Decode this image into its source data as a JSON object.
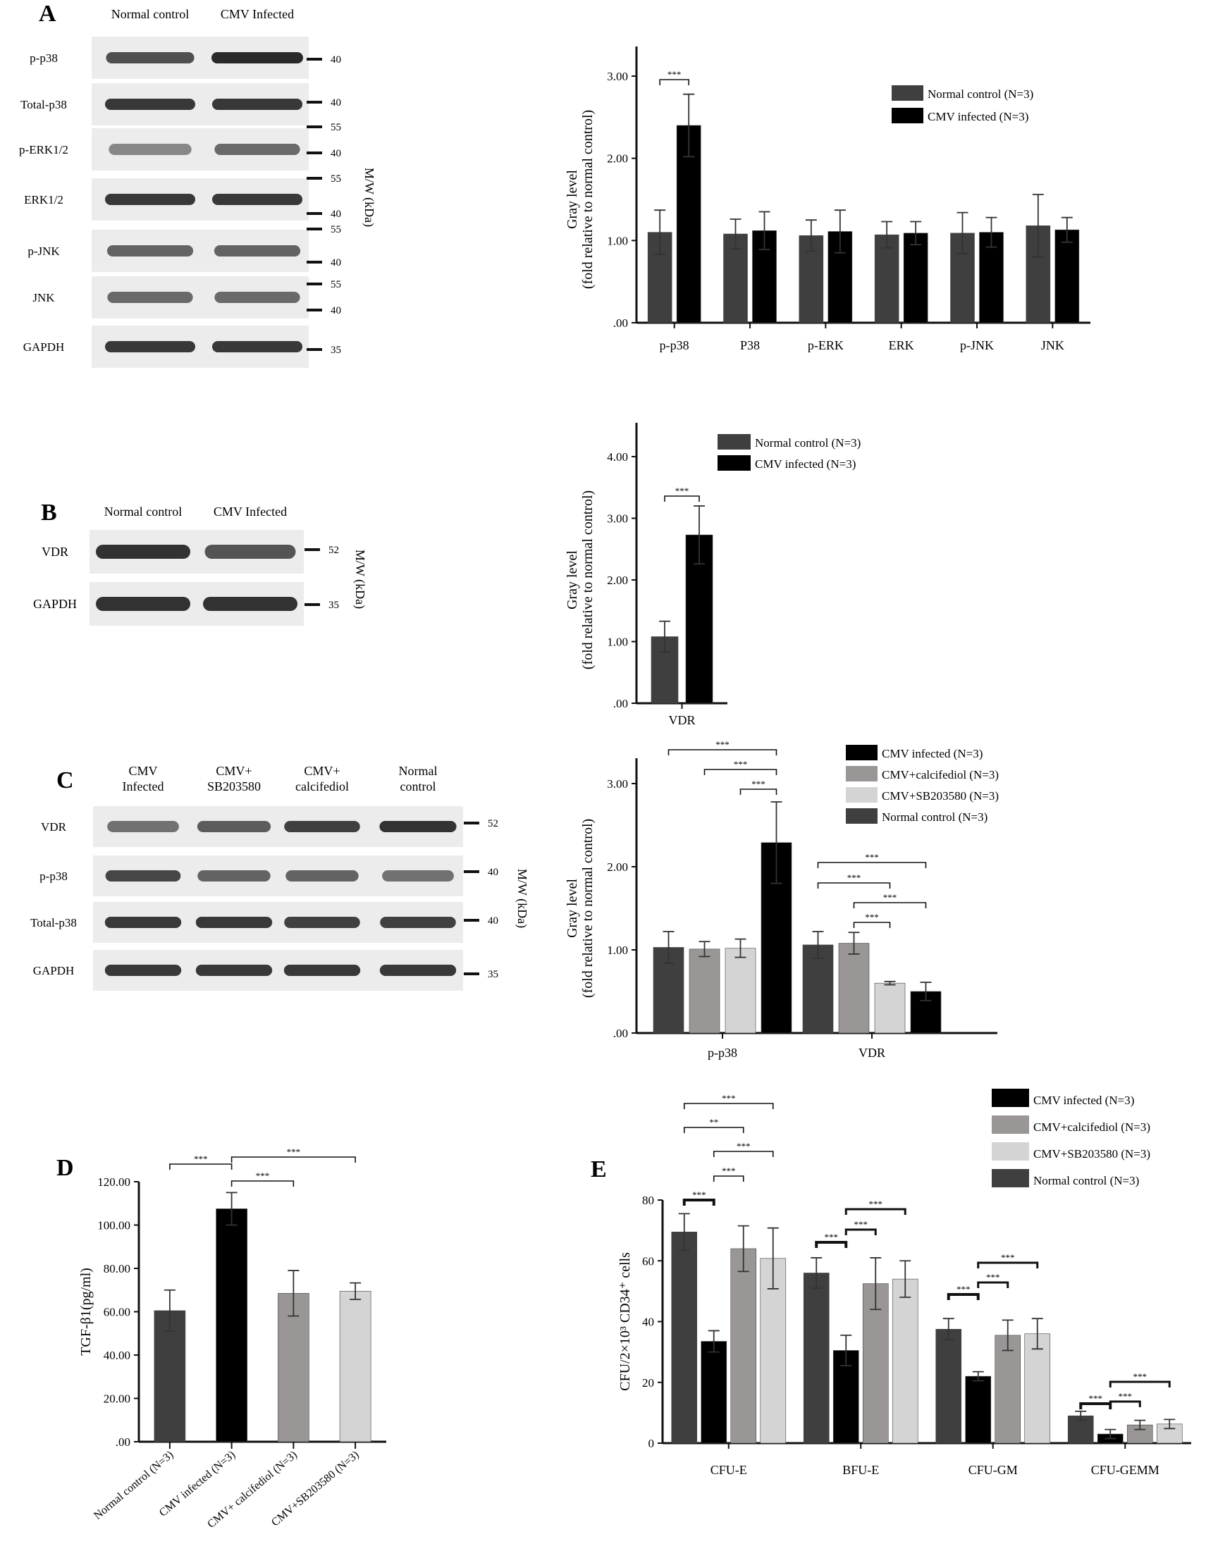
{
  "colors": {
    "normal": "#3f3f3f",
    "cmv": "#000000",
    "calcifediol": "#9a9696",
    "sb203580": "#d4d4d4",
    "blot_bg": "#ececec",
    "band": "#1f1f1f"
  },
  "panels": {
    "A": {
      "letter": "A",
      "blot": {
        "lanes": [
          "Normal control",
          "CMV Infected"
        ],
        "rows": [
          {
            "label": "p-p38",
            "markers": [
              "40"
            ],
            "intensity": [
              0.75,
              1.0
            ]
          },
          {
            "label": "Total-p38",
            "markers": [
              "40"
            ],
            "intensity": [
              0.9,
              0.9
            ]
          },
          {
            "label": "p-ERK1/2",
            "markers": [
              "55",
              "40"
            ],
            "intensity": [
              0.35,
              0.55
            ]
          },
          {
            "label": "ERK1/2",
            "markers": [
              "55",
              "40"
            ],
            "intensity": [
              0.9,
              0.9
            ]
          },
          {
            "label": "p-JNK",
            "markers": [
              "55",
              "40"
            ],
            "intensity": [
              0.6,
              0.6
            ]
          },
          {
            "label": "JNK",
            "markers": [
              "55",
              "40"
            ],
            "intensity": [
              0.55,
              0.55
            ]
          },
          {
            "label": "GAPDH",
            "markers": [
              "35"
            ],
            "intensity": [
              0.9,
              0.9
            ]
          }
        ],
        "mw_label": "M/W (kDa)"
      }
    },
    "B": {
      "letter": "B",
      "blot": {
        "lanes": [
          "Normal control",
          "CMV Infected"
        ],
        "rows": [
          {
            "label": "VDR",
            "markers": [
              "52"
            ],
            "intensity": [
              0.95,
              0.7
            ]
          },
          {
            "label": "GAPDH",
            "markers": [
              "35"
            ],
            "intensity": [
              0.95,
              0.95
            ]
          }
        ],
        "mw_label": "M/W (kDa)"
      }
    },
    "C": {
      "letter": "C",
      "blot": {
        "lanes": [
          "CMV\nInfected",
          "CMV+\nSB203580",
          "CMV+\ncalcifediol",
          "Normal\ncontrol"
        ],
        "rows": [
          {
            "label": "VDR",
            "markers": [
              "52"
            ],
            "intensity": [
              0.5,
              0.65,
              0.85,
              0.95
            ]
          },
          {
            "label": "p-p38",
            "markers": [
              "40"
            ],
            "intensity": [
              0.8,
              0.6,
              0.6,
              0.5
            ]
          },
          {
            "label": "Total-p38",
            "markers": [
              "40"
            ],
            "intensity": [
              0.9,
              0.9,
              0.85,
              0.85
            ]
          },
          {
            "label": "GAPDH",
            "markers": [
              "35"
            ],
            "intensity": [
              0.9,
              0.9,
              0.9,
              0.9
            ]
          }
        ],
        "mw_label": "M/W (kDa)"
      }
    },
    "D": {
      "letter": "D"
    },
    "E": {
      "letter": "E"
    }
  },
  "chart_data": [
    {
      "id": "A",
      "type": "bar",
      "ylabel": "Gray level",
      "ylabel2": "(fold relative to normal control)",
      "ylim": [
        0,
        3.0
      ],
      "yticks": [
        ".00",
        "1.00",
        "2.00",
        "3.00"
      ],
      "categories": [
        "p-p38",
        "P38",
        "p-ERK",
        "ERK",
        "p-JNK",
        "JNK"
      ],
      "series": [
        {
          "name": "Normal control (N=3)",
          "color": "#3f3f3f",
          "values": [
            1.1,
            1.08,
            1.06,
            1.07,
            1.09,
            1.18
          ],
          "errors": [
            0.27,
            0.18,
            0.19,
            0.16,
            0.25,
            0.38
          ]
        },
        {
          "name": "CMV infected  (N=3)",
          "color": "#000000",
          "values": [
            2.4,
            1.12,
            1.11,
            1.09,
            1.1,
            1.13
          ],
          "errors": [
            0.38,
            0.23,
            0.26,
            0.14,
            0.18,
            0.15
          ]
        }
      ],
      "sig": [
        {
          "label": "***"
        }
      ]
    },
    {
      "id": "B",
      "type": "bar",
      "ylabel": "Gray level",
      "ylabel2": "(fold relative to normal control)",
      "ylim": [
        0,
        4.0
      ],
      "yticks": [
        ".00",
        "1.00",
        "2.00",
        "3.00",
        "4.00"
      ],
      "categories": [
        "VDR"
      ],
      "series": [
        {
          "name": "Normal control (N=3)",
          "color": "#3f3f3f",
          "values": [
            1.08
          ],
          "errors": [
            0.25
          ]
        },
        {
          "name": "CMV infected  (N=3)",
          "color": "#000000",
          "values": [
            2.73
          ],
          "errors": [
            0.47
          ]
        }
      ],
      "sig": [
        {
          "label": "***"
        }
      ]
    },
    {
      "id": "C",
      "type": "bar",
      "ylabel": "Gray level",
      "ylabel2": "(fold relative to normal control)",
      "ylim": [
        0,
        3.0
      ],
      "yticks": [
        ".00",
        "1.00",
        "2.00",
        "3.00"
      ],
      "categories": [
        "p-p38",
        "VDR"
      ],
      "series": [
        {
          "name": "Normal control (N=3)",
          "color": "#3f3f3f",
          "values": [
            1.03,
            1.06
          ],
          "errors": [
            0.19,
            0.16
          ]
        },
        {
          "name": "CMV+calcifediol  (N=3)",
          "color": "#9a9696",
          "values": [
            1.01,
            1.08
          ],
          "errors": [
            0.09,
            0.13
          ]
        },
        {
          "name": "CMV+SB203580  (N=3)",
          "color": "#d4d4d4",
          "values": [
            1.02,
            0.6
          ],
          "errors": [
            0.11,
            0.02
          ]
        },
        {
          "name": "CMV infected  (N=3)",
          "color": "#000000",
          "values": [
            2.29,
            0.5
          ],
          "errors": [
            0.49,
            0.11
          ]
        }
      ],
      "legend_order": [
        3,
        1,
        2,
        0
      ],
      "sig": [
        {
          "label": "***"
        },
        {
          "label": "***"
        },
        {
          "label": "***"
        },
        {
          "label": "***"
        },
        {
          "label": "***"
        },
        {
          "label": "***"
        },
        {
          "label": "***"
        }
      ]
    },
    {
      "id": "D",
      "type": "bar",
      "ylabel": "TGF-β1(pg/ml)",
      "ylim": [
        0,
        120
      ],
      "yticks": [
        ".00",
        "20.00",
        "40.00",
        "60.00",
        "80.00",
        "100.00",
        "120.00"
      ],
      "categories": [
        "Normal control (N=3)",
        "CMV infected (N=3)",
        "CMV+ calcifediol (N=3)",
        "CMV+SB203580  (N=3)"
      ],
      "values": [
        60.5,
        107.5,
        68.5,
        69.5
      ],
      "errors": [
        9.5,
        7.5,
        10.5,
        3.8
      ],
      "colors": [
        "#3f3f3f",
        "#000000",
        "#9a9696",
        "#d4d4d4"
      ],
      "sig": [
        {
          "label": "***"
        },
        {
          "label": "***"
        },
        {
          "label": "***"
        }
      ]
    },
    {
      "id": "E",
      "type": "bar",
      "ylabel": "CFU/2×10³ CD34⁺ cells",
      "ylim": [
        0,
        80
      ],
      "yticks": [
        "0",
        "20",
        "40",
        "60",
        "80"
      ],
      "categories": [
        "CFU-E",
        "BFU-E",
        "CFU-GM",
        "CFU-GEMM"
      ],
      "series": [
        {
          "name": "Normal control (N=3)",
          "color": "#3f3f3f",
          "values": [
            69.5,
            56.0,
            37.5,
            9.0
          ],
          "errors": [
            6.0,
            5.0,
            3.5,
            1.5
          ]
        },
        {
          "name": "CMV infected  (N=3)",
          "color": "#000000",
          "values": [
            33.5,
            30.5,
            22.0,
            3.0
          ],
          "errors": [
            3.5,
            5.0,
            1.5,
            1.5
          ]
        },
        {
          "name": "CMV+calcifediol   (N=3)",
          "color": "#9a9696",
          "values": [
            64.0,
            52.5,
            35.5,
            6.0
          ],
          "errors": [
            7.5,
            8.5,
            5.0,
            1.5
          ]
        },
        {
          "name": "CMV+SB203580  (N=3)",
          "color": "#d4d4d4",
          "values": [
            60.8,
            54.0,
            36.0,
            6.3
          ],
          "errors": [
            10.0,
            6.0,
            5.0,
            1.5
          ]
        }
      ],
      "legend_order": [
        1,
        2,
        3,
        0
      ],
      "sig": [
        {
          "label": "***"
        },
        {
          "label": "**"
        },
        {
          "label": "***"
        },
        {
          "label": "***"
        },
        {
          "label": "***"
        },
        {
          "label": "***"
        },
        {
          "label": "***"
        },
        {
          "label": "***"
        },
        {
          "label": "***"
        },
        {
          "label": "***"
        },
        {
          "label": "***"
        },
        {
          "label": "***"
        },
        {
          "label": "***"
        },
        {
          "label": "***"
        },
        {
          "label": "***"
        }
      ]
    }
  ]
}
